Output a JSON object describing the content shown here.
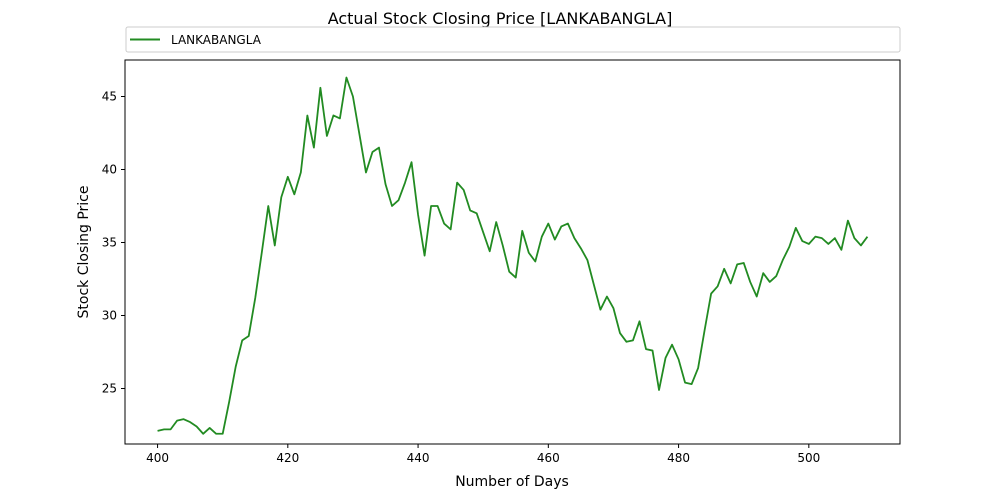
{
  "chart_data": {
    "type": "line",
    "title": "Actual Stock Closing Price [LANKABANGLA]",
    "xlabel": "Number of Days",
    "ylabel": "Stock Closing Price",
    "xlim": [
      395,
      514
    ],
    "ylim": [
      21.2,
      47.5
    ],
    "xticks": [
      400,
      420,
      440,
      460,
      480,
      500
    ],
    "yticks": [
      25,
      30,
      35,
      40,
      45
    ],
    "grid": false,
    "legend": "top",
    "series": [
      {
        "name": "LANKABANGLA",
        "color": "#228B22",
        "x": [
          400,
          401,
          402,
          403,
          404,
          405,
          406,
          407,
          408,
          409,
          410,
          411,
          412,
          413,
          414,
          415,
          416,
          417,
          418,
          419,
          420,
          421,
          422,
          423,
          424,
          425,
          426,
          427,
          428,
          429,
          430,
          431,
          432,
          433,
          434,
          435,
          436,
          437,
          438,
          439,
          440,
          441,
          442,
          443,
          444,
          445,
          446,
          447,
          448,
          449,
          450,
          451,
          452,
          453,
          454,
          455,
          456,
          457,
          458,
          459,
          460,
          461,
          462,
          463,
          464,
          465,
          466,
          467,
          468,
          469,
          470,
          471,
          472,
          473,
          474,
          475,
          476,
          477,
          478,
          479,
          480,
          481,
          482,
          483,
          484,
          485,
          486,
          487,
          488,
          489,
          490,
          491,
          492,
          493,
          494,
          495,
          496,
          497,
          498,
          499,
          500,
          501,
          502,
          503,
          504,
          505,
          506,
          507,
          508,
          509
        ],
        "values": [
          22.1,
          22.2,
          22.2,
          22.8,
          22.9,
          22.7,
          22.4,
          21.9,
          22.3,
          21.9,
          21.9,
          24.1,
          26.5,
          28.3,
          28.6,
          31.2,
          34.3,
          37.5,
          34.8,
          38.1,
          39.5,
          38.3,
          39.8,
          43.7,
          41.5,
          45.6,
          42.3,
          43.7,
          43.5,
          46.3,
          45.0,
          42.4,
          39.8,
          41.2,
          41.5,
          39.0,
          37.5,
          37.9,
          39.1,
          40.5,
          36.9,
          34.1,
          37.5,
          37.5,
          36.3,
          35.9,
          39.1,
          38.6,
          37.2,
          37.0,
          35.7,
          34.4,
          36.4,
          34.8,
          33.0,
          32.6,
          35.8,
          34.3,
          33.7,
          35.4,
          36.3,
          35.2,
          36.1,
          36.3,
          35.3,
          34.6,
          33.8,
          32.1,
          30.4,
          31.3,
          30.5,
          28.8,
          28.2,
          28.3,
          29.6,
          27.7,
          27.6,
          24.9,
          27.1,
          28.0,
          27.0,
          25.4,
          25.3,
          26.4,
          29.0,
          31.5,
          32.0,
          33.2,
          32.2,
          33.5,
          33.6,
          32.3,
          31.3,
          32.9,
          32.3,
          32.7,
          33.8,
          34.7,
          36.0,
          35.1,
          34.9,
          35.4,
          35.3,
          34.9,
          35.3,
          34.5,
          36.5,
          35.3,
          34.8,
          35.4
        ]
      }
    ]
  }
}
